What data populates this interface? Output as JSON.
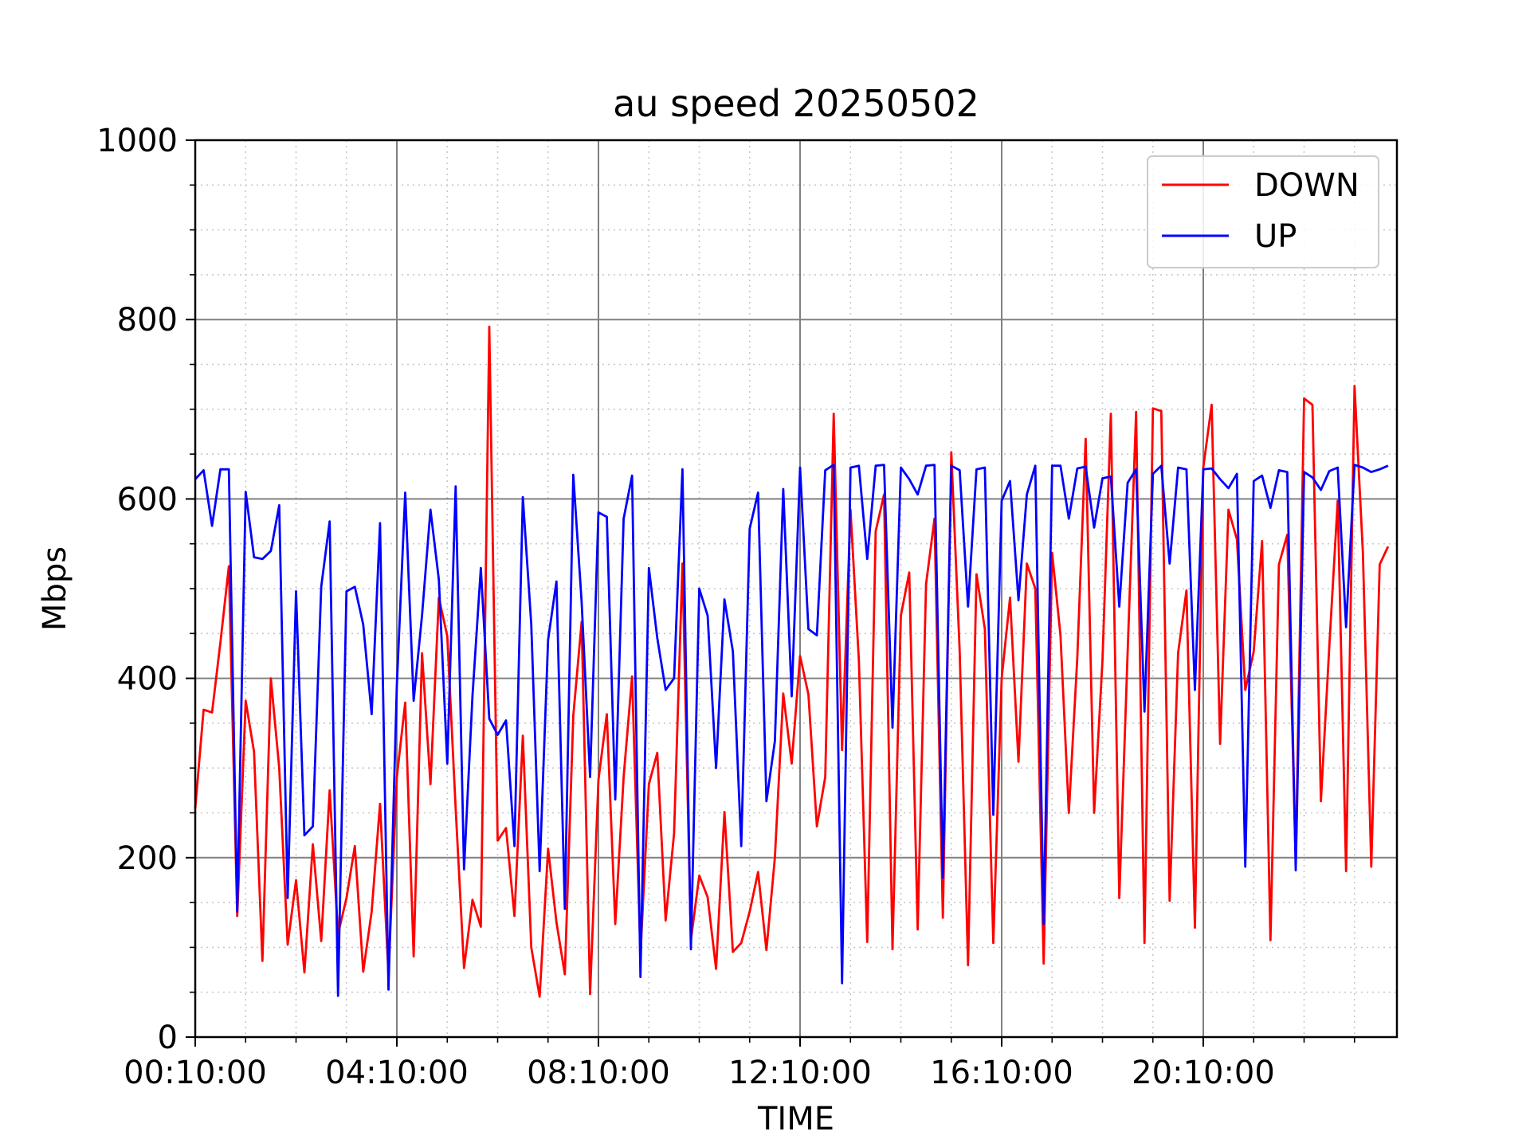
{
  "chart_data": {
    "type": "line",
    "title": "au speed 20250502",
    "xlabel": "TIME",
    "ylabel": "Mbps",
    "ylim": [
      0,
      1000
    ],
    "y_ticks": [
      "0",
      "200",
      "400",
      "600",
      "800",
      "1000"
    ],
    "x_tick_labels": [
      "00:10:00",
      "04:10:00",
      "08:10:00",
      "12:10:00",
      "16:10:00",
      "20:10:00"
    ],
    "x_unit": "minutes since 00:10:00 (10-minute sampling)",
    "x_step_minutes": 10,
    "grid": true,
    "legend": "top-right",
    "series": [
      {
        "name": "DOWN",
        "color": "#ff0000",
        "values": [
          255,
          365,
          362,
          440,
          525,
          135,
          375,
          318,
          85,
          400,
          300,
          103,
          175,
          72,
          215,
          107,
          275,
          115,
          155,
          213,
          73,
          140,
          260,
          70,
          290,
          373,
          90,
          428,
          282,
          490,
          447,
          255,
          77,
          153,
          123,
          792,
          219,
          233,
          135,
          336,
          100,
          45,
          210,
          128,
          70,
          358,
          463,
          48,
          287,
          360,
          126,
          290,
          402,
          92,
          282,
          317,
          130,
          227,
          528,
          108,
          180,
          156,
          76,
          251,
          95,
          105,
          140,
          184,
          97,
          200,
          383,
          305,
          425,
          382,
          235,
          290,
          695,
          320,
          588,
          420,
          106,
          564,
          605,
          98,
          470,
          518,
          120,
          505,
          578,
          133,
          652,
          430,
          80,
          516,
          455,
          105,
          400,
          490,
          307,
          528,
          500,
          82,
          540,
          448,
          250,
          423,
          667,
          250,
          420,
          695,
          155,
          430,
          697,
          105,
          701,
          698,
          152,
          428,
          498,
          122,
          635,
          705,
          327,
          588,
          555,
          387,
          430,
          553,
          108,
          527,
          560,
          195,
          712,
          705,
          263,
          435,
          598,
          185,
          726,
          540,
          190,
          527,
          547
        ]
      },
      {
        "name": "UP",
        "color": "#0000ff",
        "values": [
          622,
          632,
          570,
          633,
          633,
          140,
          608,
          535,
          533,
          542,
          593,
          155,
          497,
          225,
          235,
          502,
          575,
          46,
          497,
          502,
          460,
          360,
          573,
          53,
          392,
          607,
          375,
          470,
          588,
          510,
          305,
          614,
          187,
          380,
          523,
          355,
          337,
          353,
          213,
          602,
          460,
          185,
          443,
          508,
          143,
          627,
          485,
          290,
          585,
          580,
          265,
          578,
          626,
          67,
          523,
          445,
          387,
          400,
          633,
          98,
          500,
          470,
          300,
          488,
          430,
          213,
          567,
          607,
          263,
          330,
          611,
          380,
          635,
          455,
          448,
          632,
          638,
          60,
          635,
          637,
          533,
          637,
          638,
          345,
          635,
          622,
          605,
          637,
          638,
          178,
          637,
          632,
          480,
          633,
          635,
          248,
          598,
          620,
          487,
          605,
          637,
          126,
          637,
          637,
          578,
          634,
          636,
          568,
          623,
          625,
          480,
          618,
          633,
          363,
          628,
          637,
          528,
          635,
          633,
          387,
          633,
          634,
          622,
          612,
          628,
          190,
          620,
          626,
          590,
          632,
          630,
          186,
          630,
          624,
          610,
          631,
          635,
          457,
          638,
          635,
          630,
          633,
          637
        ]
      }
    ]
  }
}
